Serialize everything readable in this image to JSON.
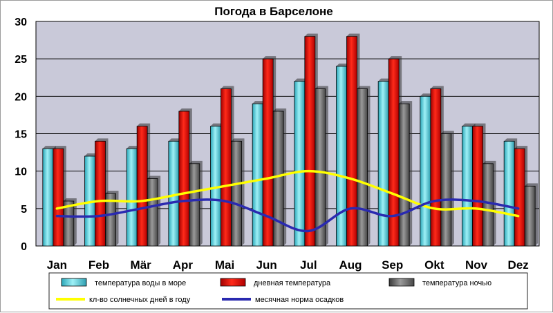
{
  "chart_data": {
    "type": "bar",
    "title": "Погода в Барселоне",
    "categories": [
      "Jan",
      "Feb",
      "Mär",
      "Apr",
      "Mai",
      "Jun",
      "Jul",
      "Aug",
      "Sep",
      "Okt",
      "Nov",
      "Dez"
    ],
    "ylim": [
      0,
      30
    ],
    "yticks": [
      0,
      5,
      10,
      15,
      20,
      25,
      30
    ],
    "grid": true,
    "series": [
      {
        "name": "температура воды в море",
        "kind": "bar",
        "color": "#5fd3de",
        "values": [
          13,
          12,
          13,
          14,
          16,
          19,
          22,
          24,
          22,
          20,
          16,
          14
        ]
      },
      {
        "name": "дневная температура",
        "kind": "bar",
        "color": "#e01010",
        "values": [
          13,
          14,
          16,
          18,
          21,
          25,
          28,
          28,
          25,
          21,
          16,
          13
        ]
      },
      {
        "name": "температура ночью",
        "kind": "bar",
        "color": "#6b6b6b",
        "values": [
          6,
          7,
          9,
          11,
          14,
          18,
          21,
          21,
          19,
          15,
          11,
          8
        ]
      },
      {
        "name": "кл-во солнечных дней в году",
        "kind": "line",
        "color": "#ffff00",
        "values": [
          5,
          6,
          6,
          7,
          8,
          9,
          10,
          9,
          7,
          5,
          5,
          4
        ]
      },
      {
        "name": "месячная норма осадков",
        "kind": "line",
        "color": "#2a2ab0",
        "values": [
          4,
          4,
          5,
          6,
          6,
          4,
          2,
          5,
          4,
          6,
          6,
          5
        ]
      }
    ],
    "legend_position": "bottom"
  }
}
